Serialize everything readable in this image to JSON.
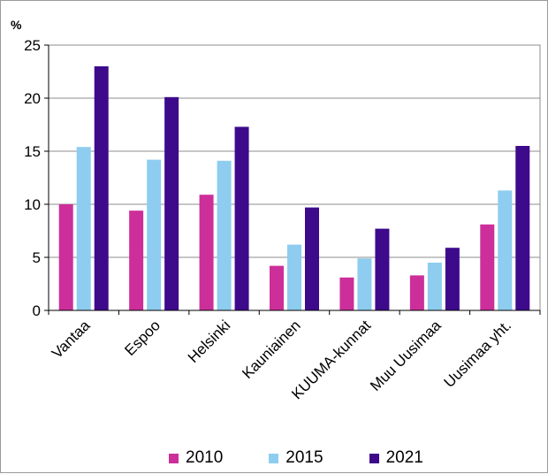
{
  "chart_data": {
    "type": "bar",
    "ylabel": "%",
    "ylim": [
      0,
      25
    ],
    "yticks": [
      0,
      5,
      10,
      15,
      20,
      25
    ],
    "grid": true,
    "legend_position": "bottom",
    "categories": [
      "Vantaa",
      "Espoo",
      "Helsinki",
      "Kauniainen",
      "KUUMA-kunnat",
      "Muu Uusimaa",
      "Uusimaa yht."
    ],
    "series": [
      {
        "name": "2010",
        "color": "#cc2e9a",
        "values": [
          10.0,
          9.4,
          10.9,
          4.2,
          3.1,
          3.3,
          8.1
        ]
      },
      {
        "name": "2015",
        "color": "#8ecdf0",
        "values": [
          15.4,
          14.2,
          14.1,
          6.2,
          4.9,
          4.5,
          11.3
        ]
      },
      {
        "name": "2021",
        "color": "#3d0a8c",
        "values": [
          23.0,
          20.1,
          17.3,
          9.7,
          7.7,
          5.9,
          15.5
        ]
      }
    ]
  }
}
